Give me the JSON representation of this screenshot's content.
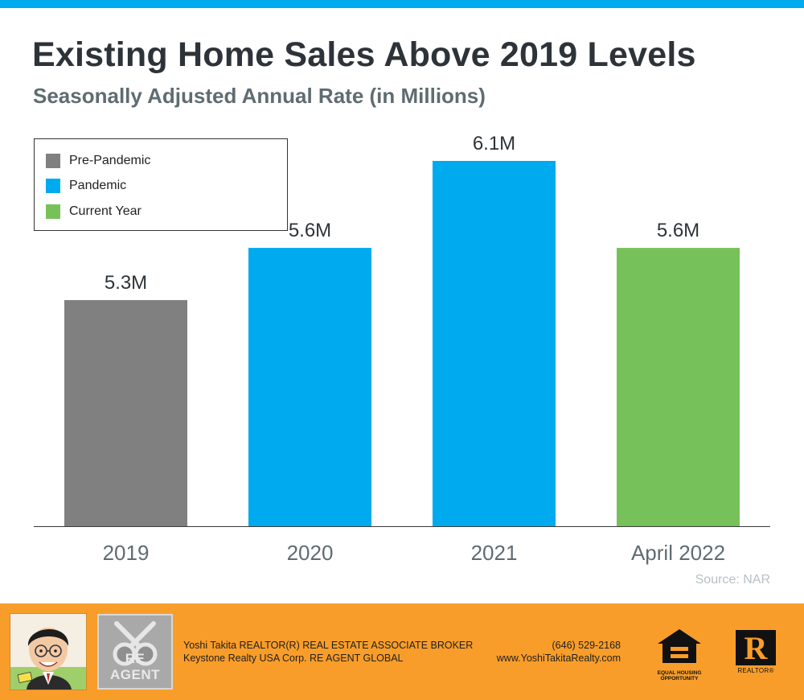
{
  "header": {
    "title": "Existing Home Sales Above 2019 Levels",
    "subtitle": "Seasonally Adjusted Annual Rate (in Millions)"
  },
  "legend": [
    {
      "label": "Pre-Pandemic",
      "color": "#808080"
    },
    {
      "label": "Pandemic",
      "color": "#00aaef"
    },
    {
      "label": "Current Year",
      "color": "#77c15a"
    }
  ],
  "chart_data": {
    "type": "bar",
    "title": "Existing Home Sales Above 2019 Levels",
    "subtitle": "Seasonally Adjusted Annual Rate (in Millions)",
    "categories": [
      "2019",
      "2020",
      "2021",
      "April 2022"
    ],
    "values": [
      5.3,
      5.6,
      6.1,
      5.6
    ],
    "data_labels": [
      "5.3M",
      "5.6M",
      "6.1M",
      "5.6M"
    ],
    "colors": [
      "#808080",
      "#00aaef",
      "#00aaef",
      "#77c15a"
    ],
    "ylim": [
      4.0,
      6.3
    ],
    "xlabel": "",
    "ylabel": "",
    "grid": false,
    "legend_position": "top-left"
  },
  "source": "Source: NAR",
  "footer": {
    "agent_name": "Yoshi Takita REALTOR(R) REAL ESTATE ASSOCIATE BROKER",
    "brokerage": "Keystone Realty USA Corp.  RE AGENT GLOBAL",
    "phone": "(646) 529-2168",
    "website": "www.YoshiTakitaRealty.com",
    "re_agent_logo_text": "RE AGENT",
    "equal_housing_text": "EQUAL HOUSING OPPORTUNITY",
    "realtor_text": "REALTOR®",
    "realtor_mark": "R"
  },
  "colors": {
    "accent_blue": "#00aaef",
    "footer_orange": "#f99d2a",
    "title_color": "#2d3339"
  }
}
